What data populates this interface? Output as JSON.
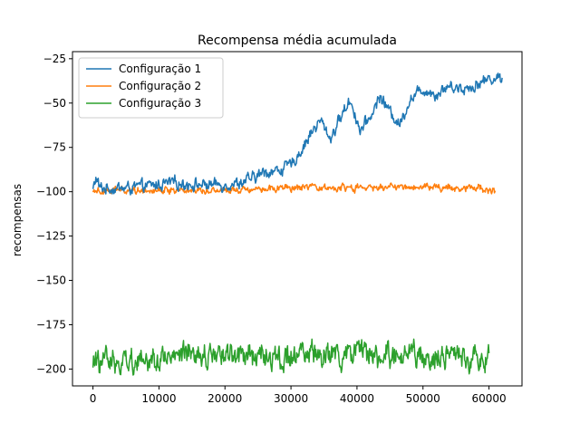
{
  "chart_data": {
    "type": "line",
    "title": "Recompensa média acumulada",
    "xlabel": "",
    "ylabel": "recompensas",
    "xlim": [
      -3100,
      65000
    ],
    "ylim": [
      -209.5,
      -21
    ],
    "xticks": [
      0,
      10000,
      20000,
      30000,
      40000,
      50000,
      60000
    ],
    "xtick_labels": [
      "0",
      "10000",
      "20000",
      "30000",
      "40000",
      "50000",
      "60000"
    ],
    "yticks": [
      -25,
      -50,
      -75,
      -100,
      -125,
      -150,
      -175,
      -200
    ],
    "ytick_labels": [
      "−25",
      "−50",
      "−75",
      "−100",
      "−125",
      "−150",
      "−175",
      "−200"
    ],
    "grid": false,
    "legend_position": "top-left",
    "series": [
      {
        "name": "Configuração 1",
        "color": "#1f77b4",
        "noise": 2.5,
        "x_end": 62000,
        "points": [
          [
            0,
            -99
          ],
          [
            500,
            -92
          ],
          [
            1000,
            -98
          ],
          [
            5000,
            -98
          ],
          [
            8000,
            -97
          ],
          [
            12000,
            -95
          ],
          [
            16000,
            -96
          ],
          [
            20000,
            -96
          ],
          [
            22000,
            -95
          ],
          [
            24000,
            -93
          ],
          [
            26000,
            -89
          ],
          [
            28000,
            -88
          ],
          [
            30000,
            -85
          ],
          [
            31500,
            -77
          ],
          [
            33000,
            -67
          ],
          [
            34500,
            -60
          ],
          [
            36000,
            -70
          ],
          [
            37500,
            -58
          ],
          [
            39000,
            -48
          ],
          [
            40500,
            -66
          ],
          [
            42000,
            -58
          ],
          [
            43500,
            -46
          ],
          [
            45000,
            -55
          ],
          [
            46500,
            -62
          ],
          [
            48000,
            -48
          ],
          [
            50000,
            -42
          ],
          [
            52000,
            -45
          ],
          [
            54000,
            -40
          ],
          [
            56000,
            -42
          ],
          [
            58000,
            -40
          ],
          [
            60000,
            -36
          ],
          [
            62000,
            -36
          ]
        ]
      },
      {
        "name": "Configuração 2",
        "color": "#ff7f0e",
        "noise": 1.5,
        "x_end": 61000,
        "points": [
          [
            0,
            -99
          ],
          [
            10000,
            -99
          ],
          [
            20000,
            -99
          ],
          [
            25000,
            -98
          ],
          [
            30000,
            -98
          ],
          [
            40000,
            -98
          ],
          [
            50000,
            -97
          ],
          [
            55000,
            -98
          ],
          [
            58000,
            -97
          ],
          [
            61000,
            -100
          ]
        ]
      },
      {
        "name": "Configuração 3",
        "color": "#2ca02c",
        "noise": 5,
        "x_end": 60000,
        "points": [
          [
            0,
            -196
          ],
          [
            10000,
            -194
          ],
          [
            20000,
            -192
          ],
          [
            30000,
            -193
          ],
          [
            40000,
            -192
          ],
          [
            50000,
            -193
          ],
          [
            60000,
            -193
          ]
        ]
      }
    ]
  }
}
